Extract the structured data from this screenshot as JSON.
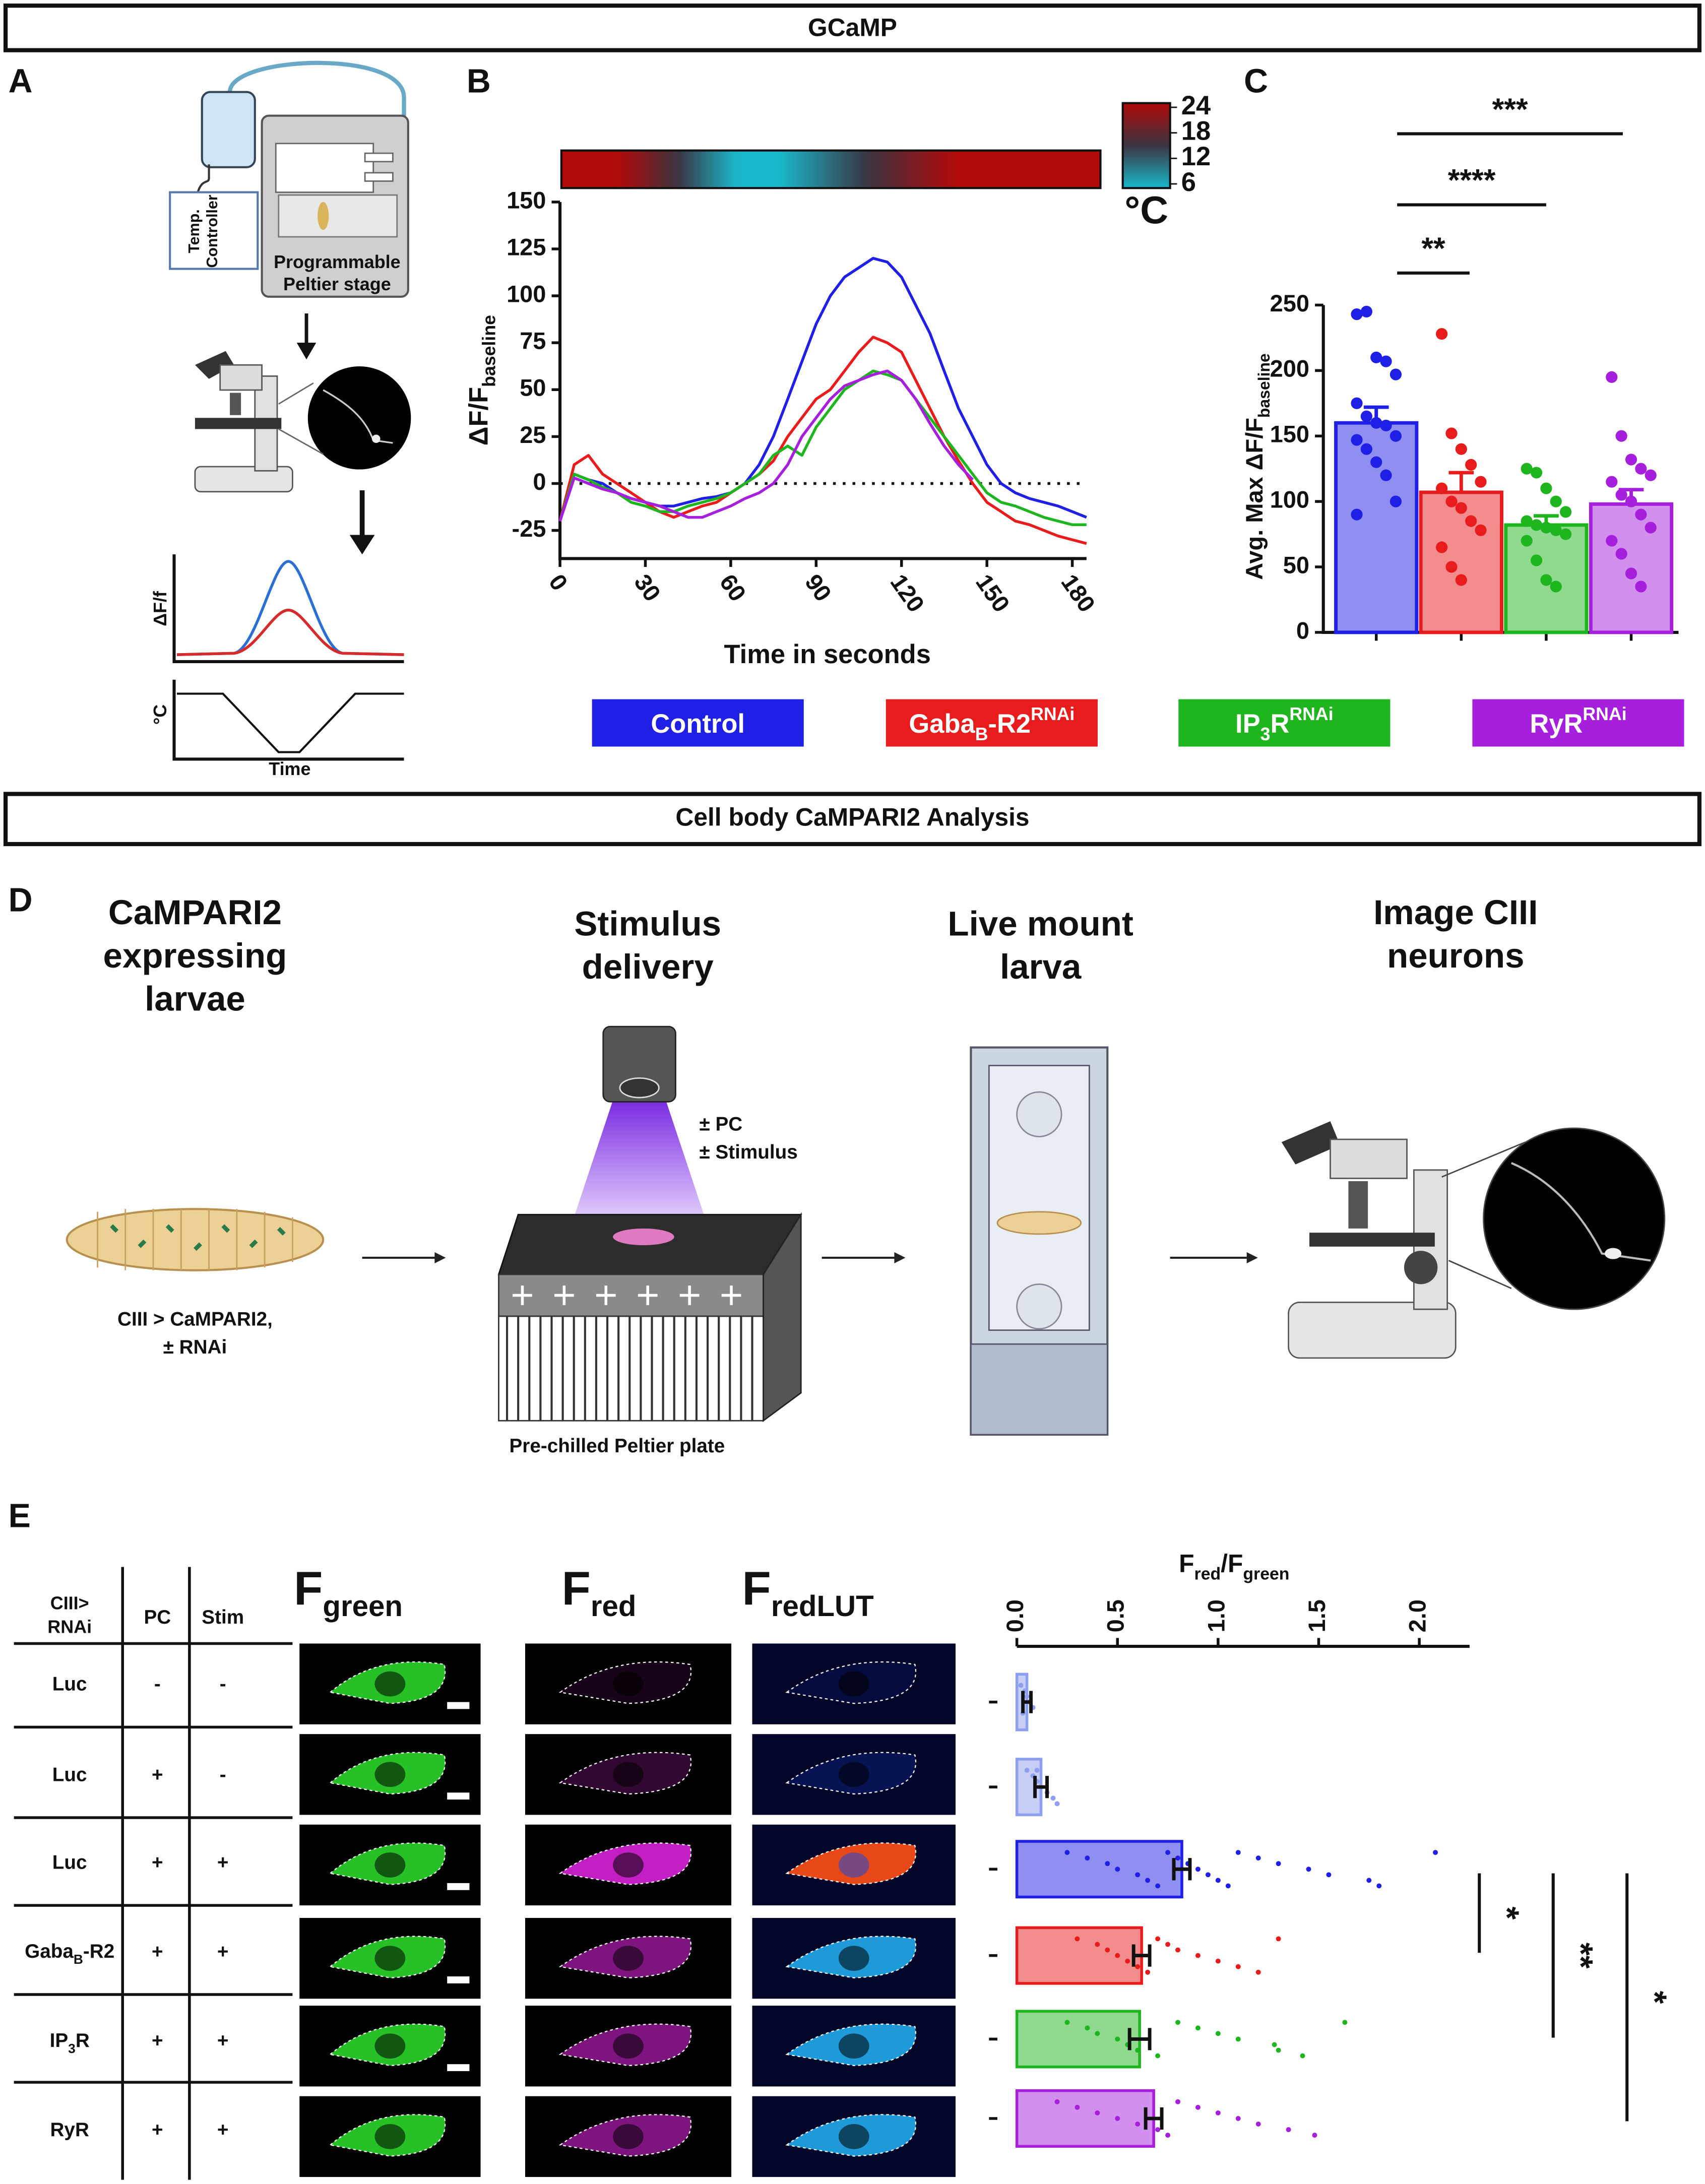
{
  "headers": {
    "gcamp": "GCaMP",
    "campari": "Cell body CaMPARI2 Analysis"
  },
  "panel_labels": [
    "A",
    "B",
    "C",
    "D",
    "E"
  ],
  "panel_a": {
    "controller": [
      "Temp.",
      "Controller"
    ],
    "stage": [
      "Programmable",
      "Peltier stage"
    ],
    "plot_y1": "ΔF/f",
    "plot_y2": "°C",
    "plot_x": "Time"
  },
  "panel_d": {
    "titles": [
      [
        "CaMPARI2",
        "expressing",
        "larvae"
      ],
      [
        "Stimulus",
        "delivery"
      ],
      [
        "Live mount",
        "larva"
      ],
      [
        "Image CIII",
        "neurons"
      ]
    ],
    "larva_caption": [
      "CIII > CaMPARI2,",
      "± RNAi"
    ],
    "stimulus_caption": [
      "± PC",
      "± Stimulus"
    ],
    "plate_caption": "Pre-chilled Peltier plate"
  },
  "panel_e": {
    "table": {
      "header": [
        [
          "CIII>",
          "RNAi"
        ],
        "PC",
        "Stim"
      ],
      "rows": [
        [
          "Luc",
          "-",
          "-"
        ],
        [
          "Luc",
          "+",
          "-"
        ],
        [
          "Luc",
          "+",
          "+"
        ],
        [
          [
            "Gaba",
            {
              "text": "B",
              "script": "sub"
            },
            "-R2"
          ],
          "+",
          "+"
        ],
        [
          [
            "IP",
            {
              "text": "3",
              "script": "sub"
            },
            "R"
          ],
          "+",
          "+"
        ],
        [
          "RyR",
          "+",
          "+"
        ]
      ]
    },
    "image_headers": [
      [
        "F",
        {
          "text": "green",
          "script": "sub"
        }
      ],
      [
        "F",
        {
          "text": "red",
          "script": "sub"
        }
      ],
      [
        "F",
        {
          "text": "redLUT",
          "script": "sub"
        }
      ]
    ]
  },
  "chart_data": [
    {
      "type": "line",
      "x": [
        0,
        5,
        10,
        15,
        20,
        25,
        30,
        35,
        40,
        45,
        50,
        55,
        60,
        65,
        70,
        75,
        80,
        85,
        90,
        95,
        100,
        105,
        110,
        115,
        120,
        125,
        130,
        135,
        140,
        145,
        150,
        155,
        160,
        165,
        170,
        175,
        180,
        185
      ],
      "xlim": [
        0,
        185
      ],
      "xticks": [
        0,
        30,
        60,
        90,
        120,
        150,
        180
      ],
      "ylim": [
        -40,
        150
      ],
      "yticks": [
        -25,
        0,
        25,
        50,
        75,
        100,
        125,
        150
      ],
      "xlabel": "Time in seconds",
      "ylabel": [
        "ΔF/F",
        {
          "text": "baseline",
          "script": "sub"
        }
      ],
      "zero_line": true,
      "series": [
        {
          "name": [
            "Control"
          ],
          "color": "#1f1fe6",
          "values": [
            -20,
            5,
            2,
            0,
            -5,
            -8,
            -10,
            -12,
            -12,
            -10,
            -8,
            -7,
            -5,
            0,
            10,
            25,
            45,
            65,
            85,
            100,
            110,
            115,
            120,
            118,
            110,
            95,
            80,
            60,
            40,
            25,
            10,
            0,
            -5,
            -8,
            -10,
            -12,
            -15,
            -18
          ]
        },
        {
          "name": [
            "Gaba",
            {
              "text": "B",
              "script": "sub"
            },
            "-R2",
            {
              "text": "RNAi",
              "script": "super"
            }
          ],
          "color": "#e81c1c",
          "values": [
            -20,
            10,
            15,
            5,
            0,
            -5,
            -10,
            -15,
            -18,
            -15,
            -12,
            -10,
            -5,
            0,
            5,
            12,
            25,
            35,
            45,
            50,
            60,
            70,
            78,
            75,
            70,
            55,
            40,
            25,
            12,
            0,
            -10,
            -15,
            -20,
            -22,
            -25,
            -28,
            -30,
            -32
          ]
        },
        {
          "name": [
            "IP",
            {
              "text": "3",
              "script": "sub"
            },
            "R",
            {
              "text": "RNAi",
              "script": "super"
            }
          ],
          "color": "#1fb51f",
          "values": [
            -20,
            5,
            2,
            -2,
            -5,
            -10,
            -12,
            -15,
            -15,
            -12,
            -10,
            -8,
            -5,
            0,
            5,
            15,
            20,
            15,
            30,
            40,
            50,
            55,
            60,
            58,
            55,
            45,
            35,
            25,
            15,
            5,
            -5,
            -10,
            -12,
            -15,
            -18,
            -20,
            -22,
            -22
          ]
        },
        {
          "name": [
            "RyR",
            {
              "text": "RNAi",
              "script": "super"
            }
          ],
          "color": "#a51fdc",
          "values": [
            -20,
            3,
            0,
            -3,
            -5,
            -8,
            -10,
            -12,
            -15,
            -18,
            -18,
            -15,
            -12,
            -8,
            -5,
            0,
            10,
            25,
            35,
            45,
            52,
            55,
            58,
            60,
            55,
            45,
            32,
            20,
            10,
            2,
            null,
            null,
            null,
            null,
            null,
            null,
            null,
            null
          ]
        }
      ],
      "temperature": {
        "x": [
          0,
          20,
          60,
          75,
          135,
          185
        ],
        "values": [
          24,
          24,
          6,
          6,
          24,
          24
        ]
      },
      "colorbar": {
        "lim": [
          6,
          24
        ],
        "ticks": [
          24,
          18,
          12,
          6
        ],
        "label": "°C",
        "colors": [
          "#19b8cc",
          "#3b3440",
          "#b00a0a"
        ]
      }
    },
    {
      "type": "bar",
      "values": [
        160,
        107,
        82,
        98
      ],
      "errors": [
        12,
        15,
        7,
        11
      ],
      "colors": [
        "#1f1fe6",
        "#e81c1c",
        "#1fb51f",
        "#a51fdc"
      ],
      "points": [
        [
          243,
          245,
          210,
          207,
          197,
          175,
          165,
          160,
          158,
          150,
          147,
          140,
          130,
          120,
          100,
          90
        ],
        [
          228,
          152,
          140,
          128,
          115,
          110,
          100,
          95,
          85,
          78,
          65,
          50,
          40
        ],
        [
          125,
          122,
          110,
          100,
          92,
          85,
          82,
          80,
          78,
          75,
          70,
          55,
          40,
          35
        ],
        [
          195,
          150,
          132,
          125,
          120,
          115,
          105,
          100,
          90,
          80,
          70,
          60,
          45,
          35
        ]
      ],
      "ylim": [
        0,
        250
      ],
      "yticks": [
        0,
        50,
        100,
        150,
        200,
        250
      ],
      "ylabel": [
        "Avg. Max ΔF/F",
        {
          "text": "baseline",
          "script": "sub"
        }
      ],
      "significance": [
        "**",
        "****",
        "***"
      ]
    },
    {
      "type": "hbar",
      "values": [
        0.05,
        0.12,
        0.82,
        0.62,
        0.61,
        0.68
      ],
      "errors": [
        0.02,
        0.03,
        0.04,
        0.04,
        0.05,
        0.04
      ],
      "colors": [
        "#8f9ff0",
        "#8f9ff0",
        "#1f1fe6",
        "#e81c1c",
        "#1fb51f",
        "#a51fdc"
      ],
      "points": [
        [
          0.02,
          0.04,
          0.05,
          0.06,
          0.08,
          0.03
        ],
        [
          0.05,
          0.08,
          0.1,
          0.12,
          0.15,
          0.18,
          0.2,
          0.1
        ],
        [
          0.25,
          0.35,
          0.45,
          0.5,
          0.6,
          0.65,
          0.7,
          0.75,
          0.8,
          0.85,
          0.9,
          0.95,
          1.0,
          1.05,
          1.1,
          1.2,
          1.3,
          1.45,
          1.55,
          1.75,
          1.8,
          2.08
        ],
        [
          0.3,
          0.4,
          0.45,
          0.5,
          0.55,
          0.6,
          0.65,
          0.7,
          0.75,
          0.8,
          0.9,
          1.0,
          1.1,
          1.2,
          1.3
        ],
        [
          0.25,
          0.35,
          0.4,
          0.5,
          0.55,
          0.6,
          0.7,
          0.8,
          0.9,
          1.0,
          1.1,
          1.28,
          1.3,
          1.42,
          1.63
        ],
        [
          0.2,
          0.3,
          0.4,
          0.5,
          0.6,
          0.7,
          0.75,
          0.8,
          0.9,
          1.0,
          1.1,
          1.2,
          1.35,
          1.48
        ]
      ],
      "xlim": [
        0,
        2.25
      ],
      "xticks": [
        {
          "value": 0,
          "label": "0.0"
        },
        0.5,
        {
          "value": 1,
          "label": "1.0"
        },
        1.5,
        {
          "value": 2,
          "label": "2.0"
        }
      ],
      "xlabel": [
        "F",
        {
          "text": "red",
          "script": "sub"
        },
        "/F",
        {
          "text": "green",
          "script": "sub"
        }
      ],
      "significance": [
        "*",
        "**",
        "*"
      ]
    }
  ]
}
